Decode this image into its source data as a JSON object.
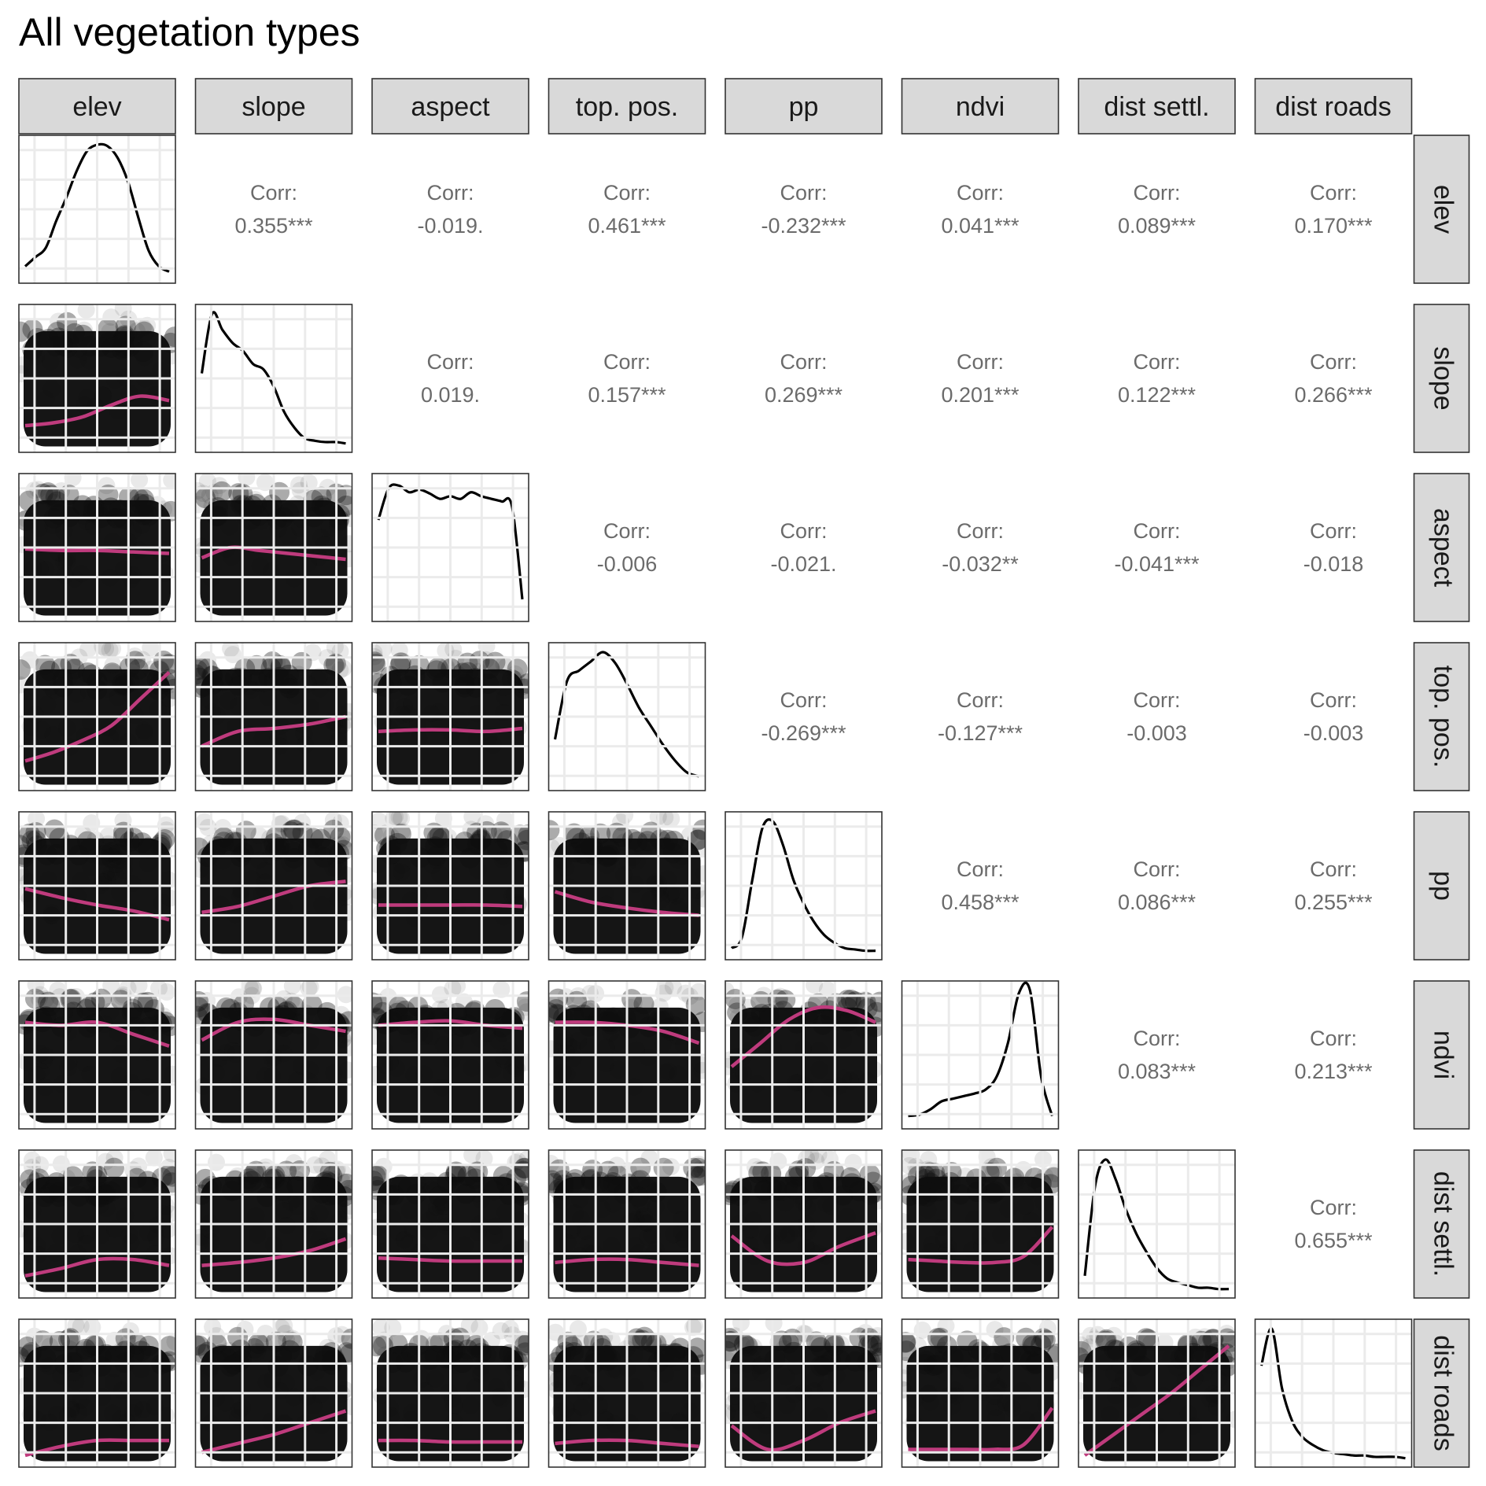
{
  "chart_data": {
    "type": "scatter",
    "title": "All vegetation types",
    "variables": [
      "elev",
      "slope",
      "aspect",
      "top. pos.",
      "pp",
      "ndvi",
      "dist settl.",
      "dist roads"
    ],
    "corr_label": "Corr:",
    "correlations": [
      {
        "row": "elev",
        "col": "slope",
        "value": "0.355***"
      },
      {
        "row": "elev",
        "col": "aspect",
        "value": "-0.019."
      },
      {
        "row": "elev",
        "col": "top. pos.",
        "value": "0.461***"
      },
      {
        "row": "elev",
        "col": "pp",
        "value": "-0.232***"
      },
      {
        "row": "elev",
        "col": "ndvi",
        "value": "0.041***"
      },
      {
        "row": "elev",
        "col": "dist settl.",
        "value": "0.089***"
      },
      {
        "row": "elev",
        "col": "dist roads",
        "value": "0.170***"
      },
      {
        "row": "slope",
        "col": "aspect",
        "value": "0.019."
      },
      {
        "row": "slope",
        "col": "top. pos.",
        "value": "0.157***"
      },
      {
        "row": "slope",
        "col": "pp",
        "value": "0.269***"
      },
      {
        "row": "slope",
        "col": "ndvi",
        "value": "0.201***"
      },
      {
        "row": "slope",
        "col": "dist settl.",
        "value": "0.122***"
      },
      {
        "row": "slope",
        "col": "dist roads",
        "value": "0.266***"
      },
      {
        "row": "aspect",
        "col": "top. pos.",
        "value": "-0.006"
      },
      {
        "row": "aspect",
        "col": "pp",
        "value": "-0.021."
      },
      {
        "row": "aspect",
        "col": "ndvi",
        "value": "-0.032**"
      },
      {
        "row": "aspect",
        "col": "dist settl.",
        "value": "-0.041***"
      },
      {
        "row": "aspect",
        "col": "dist roads",
        "value": "-0.018"
      },
      {
        "row": "top. pos.",
        "col": "pp",
        "value": "-0.269***"
      },
      {
        "row": "top. pos.",
        "col": "ndvi",
        "value": "-0.127***"
      },
      {
        "row": "top. pos.",
        "col": "dist settl.",
        "value": "-0.003"
      },
      {
        "row": "top. pos.",
        "col": "dist roads",
        "value": "-0.003"
      },
      {
        "row": "pp",
        "col": "ndvi",
        "value": "0.458***"
      },
      {
        "row": "pp",
        "col": "dist settl.",
        "value": "0.086***"
      },
      {
        "row": "pp",
        "col": "dist roads",
        "value": "0.255***"
      },
      {
        "row": "ndvi",
        "col": "dist settl.",
        "value": "0.083***"
      },
      {
        "row": "ndvi",
        "col": "dist roads",
        "value": "0.213***"
      },
      {
        "row": "dist settl.",
        "col": "dist roads",
        "value": "0.655***"
      }
    ],
    "densities": {
      "elev": [
        0.08,
        0.15,
        0.22,
        0.42,
        0.6,
        0.8,
        0.95,
        1.0,
        0.99,
        0.9,
        0.72,
        0.45,
        0.2,
        0.08,
        0.04
      ],
      "slope": [
        0.55,
        1.0,
        0.88,
        0.78,
        0.72,
        0.62,
        0.58,
        0.45,
        0.26,
        0.14,
        0.06,
        0.04,
        0.03,
        0.03,
        0.02
      ],
      "aspect": [
        0.72,
        0.96,
        0.98,
        0.93,
        0.95,
        0.92,
        0.88,
        0.9,
        0.88,
        0.93,
        0.9,
        0.88,
        0.86,
        0.82,
        0.12
      ],
      "top. pos.": [
        0.34,
        0.78,
        0.86,
        0.93,
        1.0,
        0.92,
        0.76,
        0.58,
        0.44,
        0.3,
        0.18,
        0.09,
        0.06
      ],
      "pp": [
        0.04,
        0.12,
        0.55,
        0.95,
        1.0,
        0.82,
        0.56,
        0.38,
        0.24,
        0.14,
        0.08,
        0.04,
        0.03,
        0.02,
        0.02
      ],
      "ndvi": [
        0.05,
        0.06,
        0.1,
        0.16,
        0.18,
        0.2,
        0.22,
        0.25,
        0.35,
        0.6,
        0.98,
        1.0,
        0.35,
        0.05
      ],
      "dist settl.": [
        0.12,
        0.8,
        1.0,
        0.85,
        0.62,
        0.44,
        0.3,
        0.18,
        0.1,
        0.07,
        0.05,
        0.03,
        0.03,
        0.02,
        0.02
      ],
      "dist roads": [
        0.72,
        1.0,
        0.55,
        0.3,
        0.18,
        0.12,
        0.08,
        0.06,
        0.05,
        0.04,
        0.04,
        0.03,
        0.03,
        0.03,
        0.02
      ]
    },
    "smooth_lines": [
      {
        "row": "slope",
        "col": "elev",
        "y": [
          0.18,
          0.2,
          0.24,
          0.32,
          0.38,
          0.35
        ]
      },
      {
        "row": "aspect",
        "col": "elev",
        "y": [
          0.49,
          0.48,
          0.48,
          0.47,
          0.46
        ]
      },
      {
        "row": "aspect",
        "col": "slope",
        "y": [
          0.43,
          0.5,
          0.48,
          0.46,
          0.44,
          0.42
        ]
      },
      {
        "row": "top. pos.",
        "col": "elev",
        "y": [
          0.2,
          0.26,
          0.34,
          0.44,
          0.62,
          0.8
        ]
      },
      {
        "row": "top. pos.",
        "col": "slope",
        "y": [
          0.3,
          0.4,
          0.42,
          0.45,
          0.5
        ]
      },
      {
        "row": "top. pos.",
        "col": "aspect",
        "y": [
          0.4,
          0.41,
          0.41,
          0.4,
          0.42
        ]
      },
      {
        "row": "pp",
        "col": "elev",
        "y": [
          0.48,
          0.42,
          0.37,
          0.33,
          0.27
        ]
      },
      {
        "row": "pp",
        "col": "slope",
        "y": [
          0.32,
          0.36,
          0.43,
          0.5,
          0.53
        ]
      },
      {
        "row": "pp",
        "col": "aspect",
        "y": [
          0.37,
          0.37,
          0.37,
          0.37,
          0.36
        ]
      },
      {
        "row": "pp",
        "col": "top. pos.",
        "y": [
          0.46,
          0.39,
          0.35,
          0.32,
          0.3
        ]
      },
      {
        "row": "ndvi",
        "col": "elev",
        "y": [
          0.72,
          0.7,
          0.72,
          0.64,
          0.56
        ]
      },
      {
        "row": "ndvi",
        "col": "slope",
        "y": [
          0.6,
          0.72,
          0.74,
          0.7,
          0.66
        ]
      },
      {
        "row": "ndvi",
        "col": "aspect",
        "y": [
          0.7,
          0.72,
          0.73,
          0.7,
          0.68
        ]
      },
      {
        "row": "ndvi",
        "col": "top. pos.",
        "y": [
          0.72,
          0.72,
          0.7,
          0.66,
          0.58
        ]
      },
      {
        "row": "ndvi",
        "col": "pp",
        "y": [
          0.42,
          0.58,
          0.74,
          0.82,
          0.8,
          0.72
        ]
      },
      {
        "row": "dist settl.",
        "col": "elev",
        "y": [
          0.15,
          0.2,
          0.26,
          0.26,
          0.22
        ]
      },
      {
        "row": "dist settl.",
        "col": "slope",
        "y": [
          0.22,
          0.24,
          0.27,
          0.32,
          0.4
        ]
      },
      {
        "row": "dist settl.",
        "col": "aspect",
        "y": [
          0.27,
          0.26,
          0.25,
          0.25,
          0.25
        ]
      },
      {
        "row": "dist settl.",
        "col": "top. pos.",
        "y": [
          0.24,
          0.26,
          0.26,
          0.24,
          0.22
        ]
      },
      {
        "row": "dist settl.",
        "col": "pp",
        "y": [
          0.42,
          0.25,
          0.24,
          0.35,
          0.44
        ]
      },
      {
        "row": "dist settl.",
        "col": "ndvi",
        "y": [
          0.26,
          0.25,
          0.24,
          0.24,
          0.28,
          0.48
        ]
      },
      {
        "row": "dist roads",
        "col": "elev",
        "y": [
          0.08,
          0.14,
          0.18,
          0.18,
          0.18
        ]
      },
      {
        "row": "dist roads",
        "col": "slope",
        "y": [
          0.1,
          0.16,
          0.22,
          0.3,
          0.38
        ]
      },
      {
        "row": "dist roads",
        "col": "aspect",
        "y": [
          0.18,
          0.18,
          0.17,
          0.17,
          0.17
        ]
      },
      {
        "row": "dist roads",
        "col": "top. pos.",
        "y": [
          0.16,
          0.18,
          0.18,
          0.16,
          0.14
        ]
      },
      {
        "row": "dist roads",
        "col": "pp",
        "y": [
          0.28,
          0.12,
          0.18,
          0.3,
          0.38
        ]
      },
      {
        "row": "dist roads",
        "col": "ndvi",
        "y": [
          0.12,
          0.12,
          0.12,
          0.12,
          0.15,
          0.4
        ]
      },
      {
        "row": "dist roads",
        "col": "dist settl.",
        "y": [
          0.08,
          0.22,
          0.36,
          0.5,
          0.66,
          0.82
        ]
      }
    ],
    "colors": {
      "points": "#0d0d0d",
      "smooth": "#bf3b7d",
      "strip_fill": "#d9d9d9",
      "grid": "#ebebeb",
      "corr_text": "#6b6b6b",
      "density": "#000000"
    }
  }
}
